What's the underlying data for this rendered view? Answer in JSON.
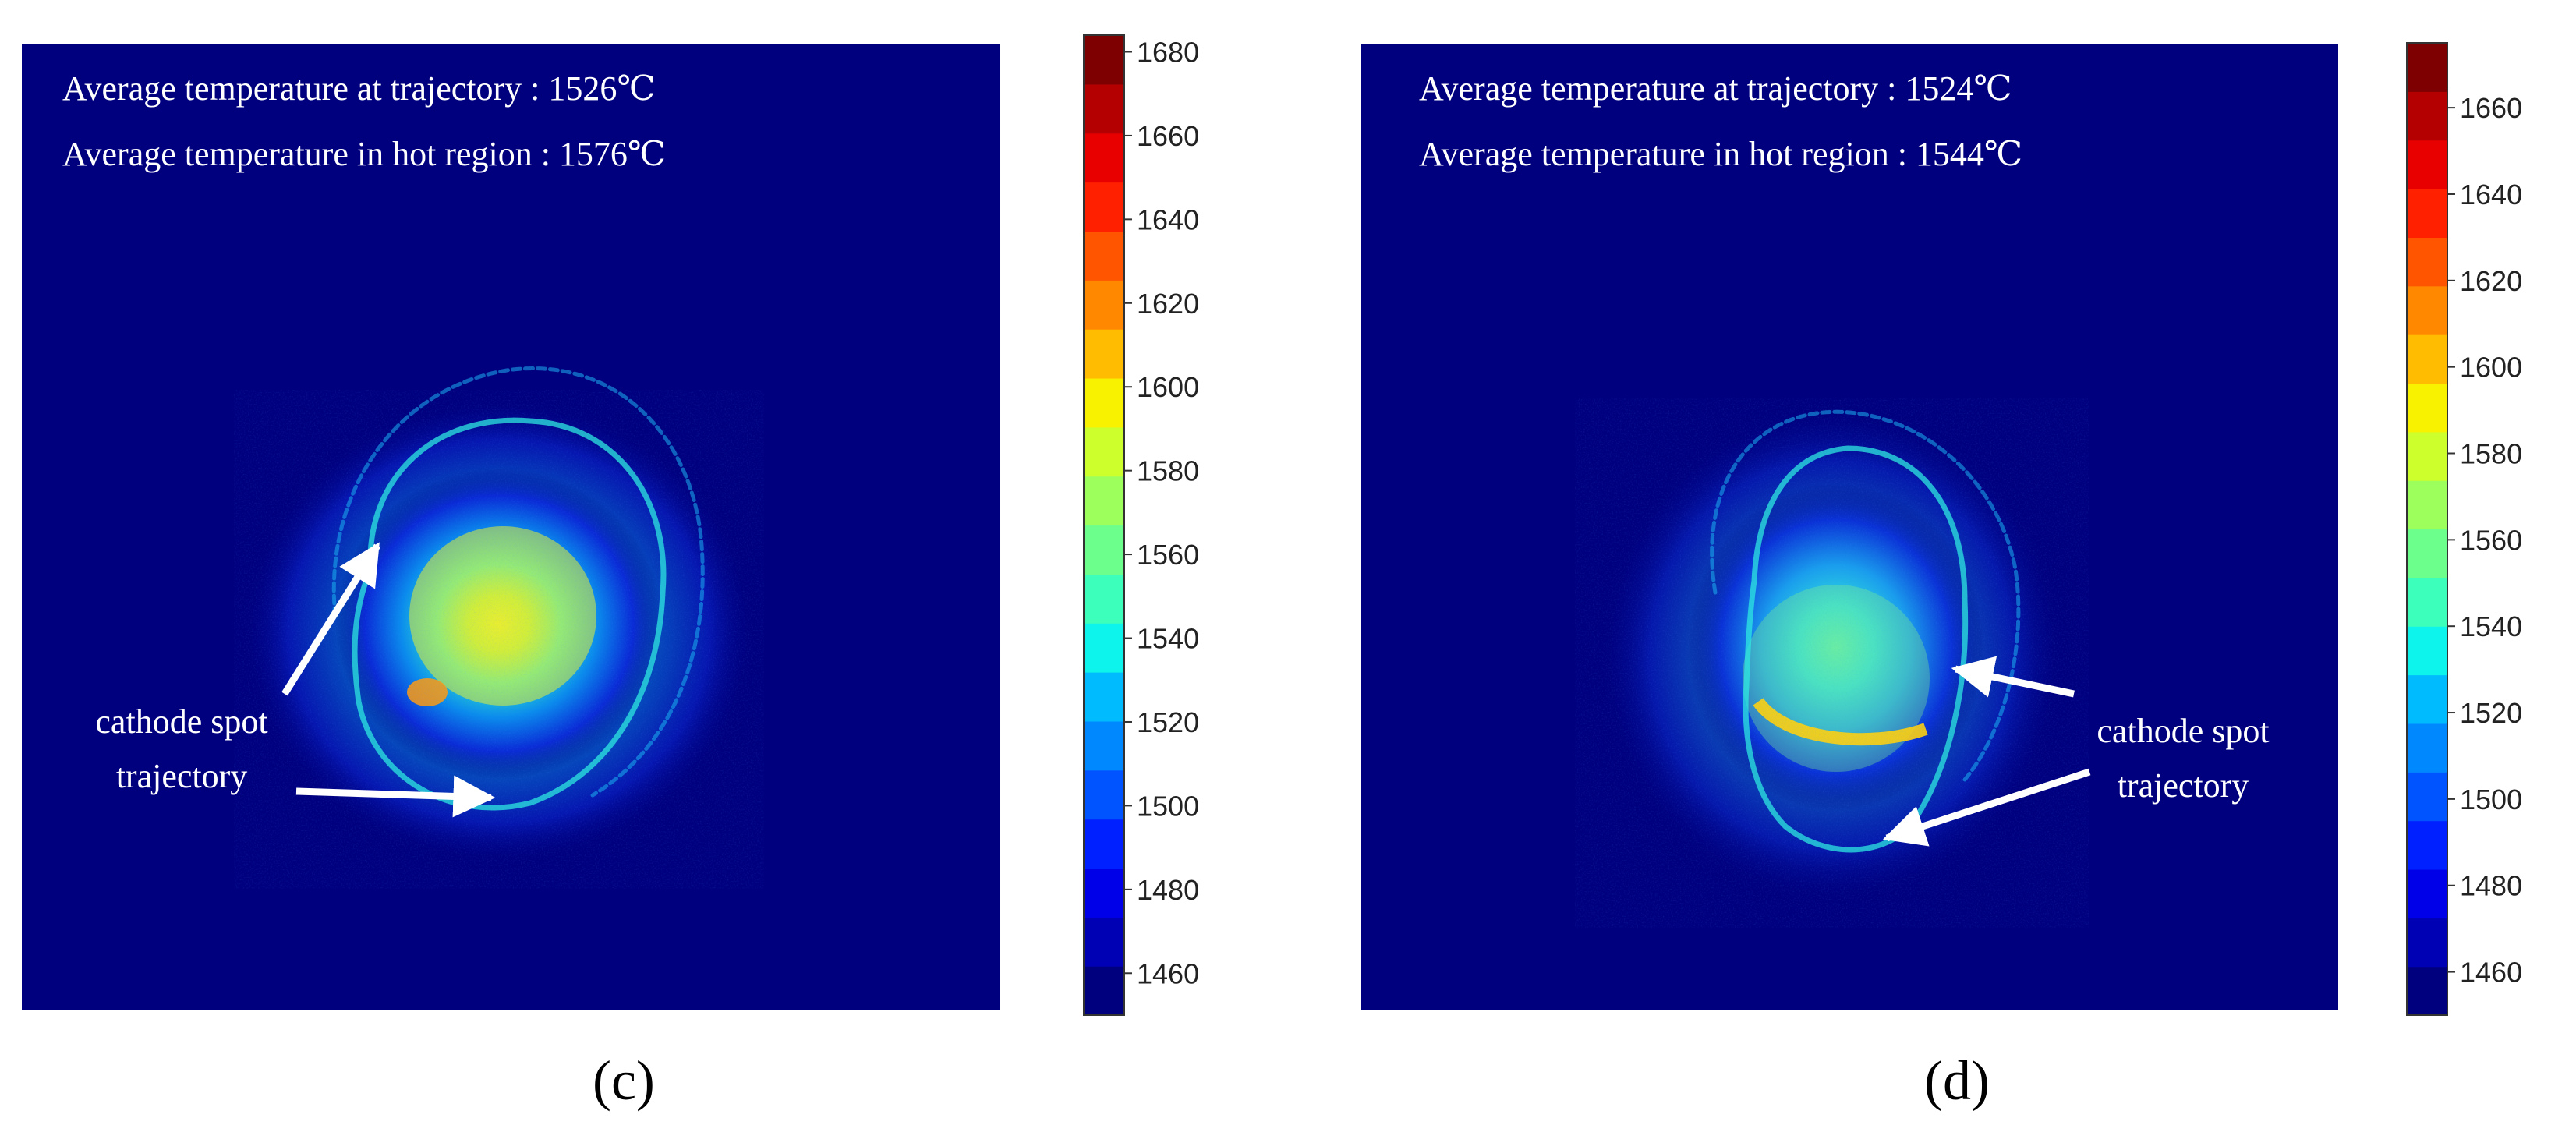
{
  "chart_data": [
    {
      "type": "heatmap",
      "panel_label": "(c)",
      "annotations": {
        "line1": "Average temperature at trajectory : 1526℃",
        "line2": "Average temperature in hot region : 1576℃",
        "arrow_label_line1": "cathode spot",
        "arrow_label_line2": "trajectory"
      },
      "metrics": {
        "avg_temperature_trajectory": 1526,
        "avg_temperature_hot_region": 1576,
        "unit": "℃"
      },
      "colorbar": {
        "ticks": [
          1460,
          1480,
          1500,
          1520,
          1540,
          1560,
          1580,
          1600,
          1620,
          1640,
          1660,
          1680
        ],
        "range": [
          1450,
          1684
        ]
      }
    },
    {
      "type": "heatmap",
      "panel_label": "(d)",
      "annotations": {
        "line1": "Average temperature at trajectory : 1524℃",
        "line2": "Average temperature in hot region : 1544℃",
        "arrow_label_line1": "cathode spot",
        "arrow_label_line2": "trajectory"
      },
      "metrics": {
        "avg_temperature_trajectory": 1524,
        "avg_temperature_hot_region": 1544,
        "unit": "℃"
      },
      "colorbar": {
        "ticks": [
          1460,
          1480,
          1500,
          1520,
          1540,
          1560,
          1580,
          1600,
          1620,
          1640,
          1660
        ],
        "range": [
          1450,
          1675
        ]
      }
    }
  ],
  "colors": {
    "background_field": "#00007f",
    "colormap": [
      "#00007f",
      "#0000b4",
      "#0000e8",
      "#0020ff",
      "#0054ff",
      "#0088ff",
      "#00bcff",
      "#0cf4eb",
      "#3cffbc",
      "#6cff8c",
      "#9cff5c",
      "#ccff2c",
      "#f8f200",
      "#ffbc00",
      "#ff8800",
      "#ff5400",
      "#ff2000",
      "#e80000",
      "#b40000",
      "#7f0000"
    ]
  }
}
